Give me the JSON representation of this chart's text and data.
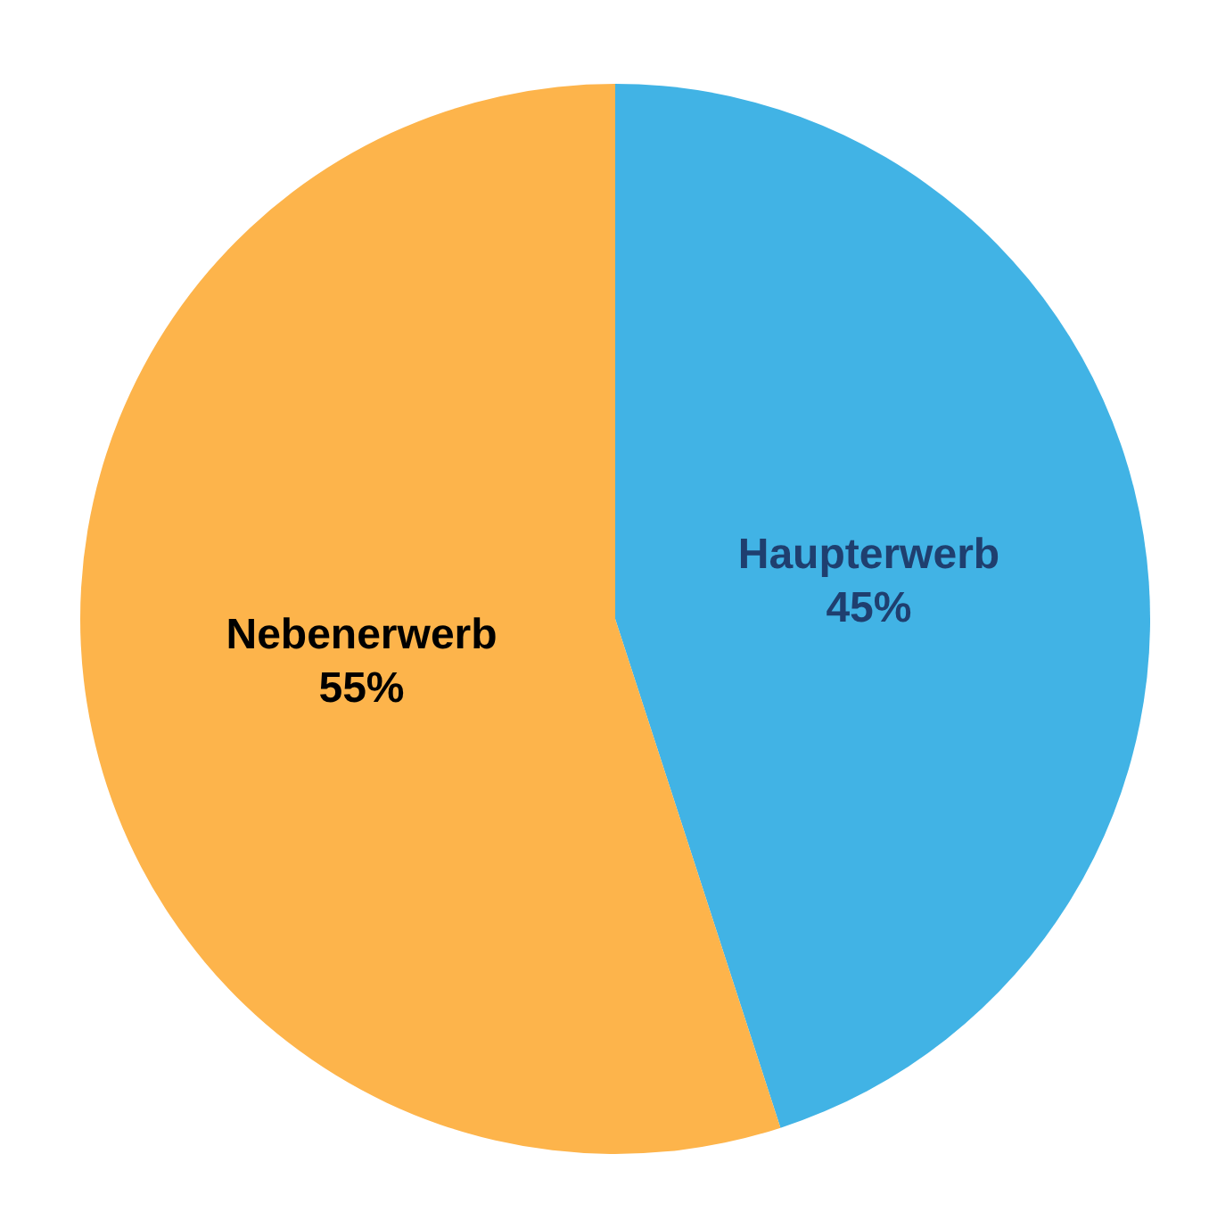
{
  "chart_data": {
    "type": "pie",
    "categories": [
      "Haupterwerb",
      "Nebenerwerb"
    ],
    "values": [
      45,
      55
    ],
    "colors": [
      "#41b3e5",
      "#fdb44b"
    ],
    "value_labels": [
      "45%",
      "55%"
    ],
    "legend": false
  }
}
